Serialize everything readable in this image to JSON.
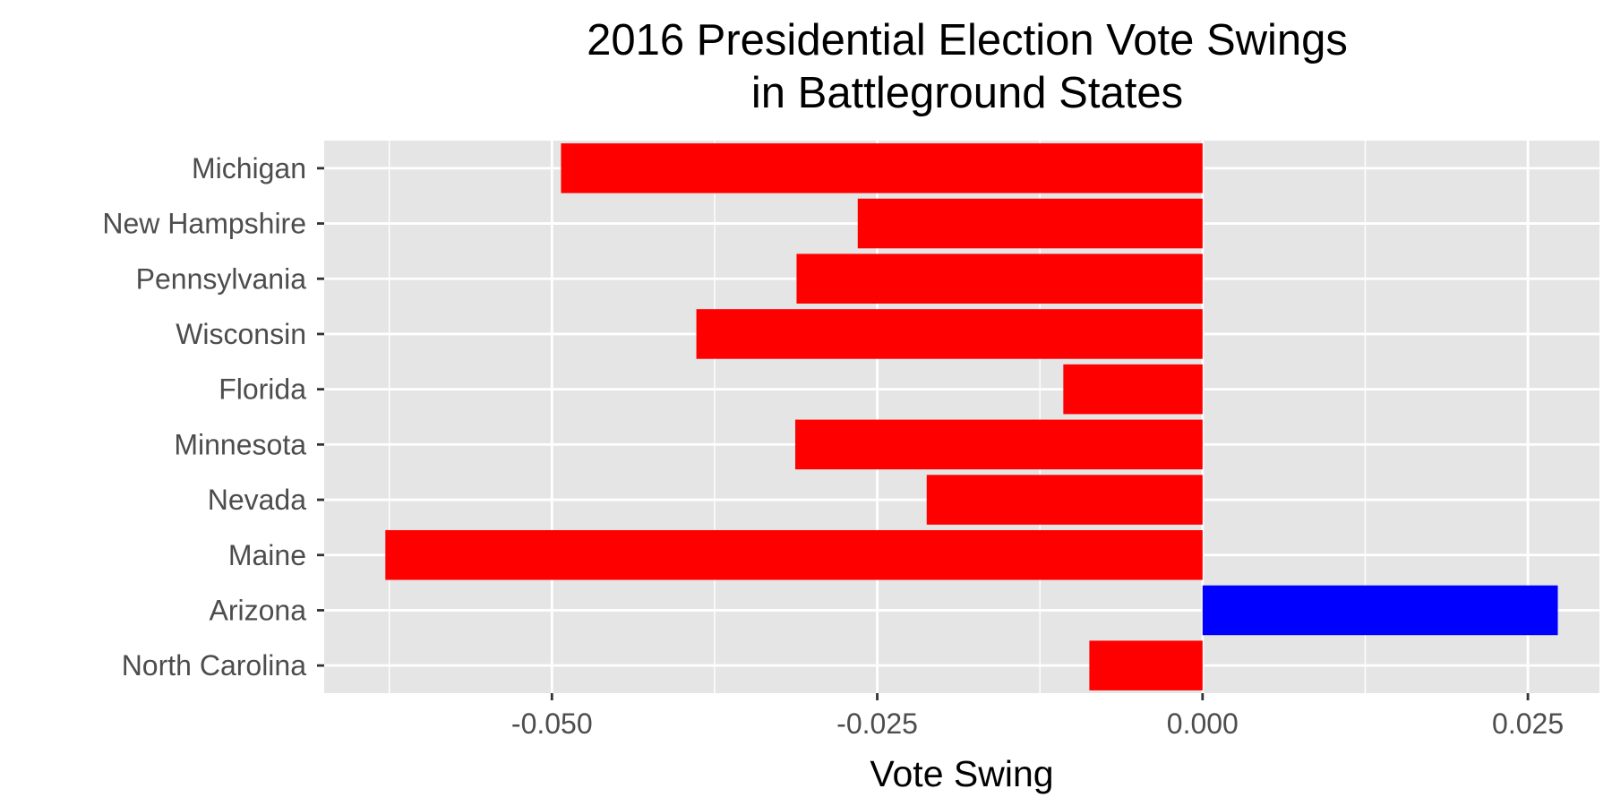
{
  "chart_data": {
    "type": "bar",
    "orientation": "horizontal",
    "title_lines": [
      "2016 Presidential Election Vote Swings",
      "in Battleground States"
    ],
    "xlabel": "Vote Swing",
    "ylabel": "",
    "xlim": [
      -0.0675,
      0.0305
    ],
    "x_ticks": [
      {
        "value": -0.05,
        "label": "-0.050"
      },
      {
        "value": -0.025,
        "label": "-0.025"
      },
      {
        "value": 0.0,
        "label": "0.000"
      },
      {
        "value": 0.025,
        "label": "0.025"
      }
    ],
    "x_minor_ticks": [
      -0.0625,
      -0.0375,
      -0.0125,
      0.0125
    ],
    "categories": [
      "Michigan",
      "New Hampshire",
      "Pennsylvania",
      "Wisconsin",
      "Florida",
      "Minnesota",
      "Nevada",
      "Maine",
      "Arizona",
      "North Carolina"
    ],
    "values": [
      -0.0493,
      -0.0265,
      -0.0312,
      -0.0389,
      -0.0107,
      -0.0313,
      -0.0212,
      -0.0628,
      0.0273,
      -0.0087
    ],
    "grid": true,
    "legend": "none",
    "colors": {
      "negative": "#ff0000",
      "positive": "#0000ff",
      "panel_background": "#e5e5e5",
      "grid_lines": "#ffffff",
      "tick_text": "#4d4d4d",
      "title_text": "#000000"
    }
  }
}
